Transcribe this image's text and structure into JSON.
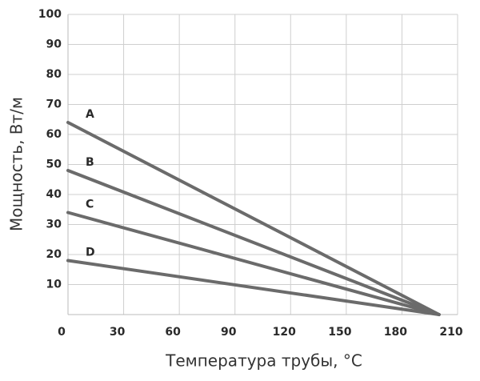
{
  "chart_data": {
    "type": "line",
    "x_label": "Температура трубы, °С",
    "y_label": "Мощность, Вт/м",
    "xlim": [
      0,
      210
    ],
    "xticks": [
      0,
      30,
      60,
      90,
      120,
      150,
      180,
      210
    ],
    "ylim": [
      0,
      100
    ],
    "yticks": [
      10,
      20,
      30,
      40,
      50,
      60,
      70,
      80,
      90,
      100
    ],
    "grid": true,
    "series": [
      {
        "name": "A",
        "color": "#6b6b6b",
        "x": [
          0,
          200
        ],
        "values": [
          64,
          0
        ]
      },
      {
        "name": "B",
        "color": "#6b6b6b",
        "x": [
          0,
          200
        ],
        "values": [
          48,
          0
        ]
      },
      {
        "name": "C",
        "color": "#6b6b6b",
        "x": [
          0,
          200
        ],
        "values": [
          34,
          0
        ]
      },
      {
        "name": "D",
        "color": "#6b6b6b",
        "x": [
          0,
          200
        ],
        "values": [
          18,
          0
        ]
      }
    ]
  }
}
